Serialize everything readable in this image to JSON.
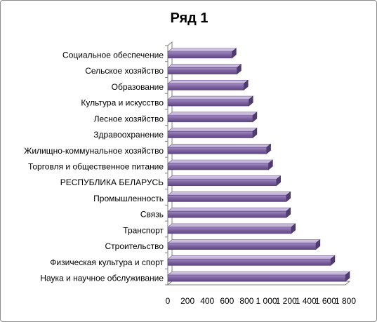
{
  "chart_data": {
    "type": "bar",
    "orientation": "horizontal",
    "title": "Ряд 1",
    "categories": [
      "Социальное обеспечение",
      "Сельское хозяйство",
      "Образование",
      "Культура и искусство",
      "Лесное хозяйство",
      "Здравоохранение",
      "Жилищно-коммунальное хозяйство",
      "Торговля и общественное питание",
      "РЕСПУБЛИКА БЕЛАРУСЬ",
      "Промышленность",
      "Связь",
      "Транспорт",
      "Строительство",
      "Физическая культура и спорт",
      "Наука и научное обслуживание"
    ],
    "values": [
      650,
      700,
      770,
      820,
      860,
      860,
      1000,
      1020,
      1100,
      1200,
      1200,
      1250,
      1500,
      1650,
      1800
    ],
    "x_ticks": [
      "0",
      "200",
      "400",
      "600",
      "800",
      "1 000",
      "1 200",
      "1 400",
      "1 600",
      "1 800"
    ],
    "xlim": [
      0,
      1800
    ],
    "bar_color": "#8064a2",
    "grid": false,
    "legend": "none"
  }
}
